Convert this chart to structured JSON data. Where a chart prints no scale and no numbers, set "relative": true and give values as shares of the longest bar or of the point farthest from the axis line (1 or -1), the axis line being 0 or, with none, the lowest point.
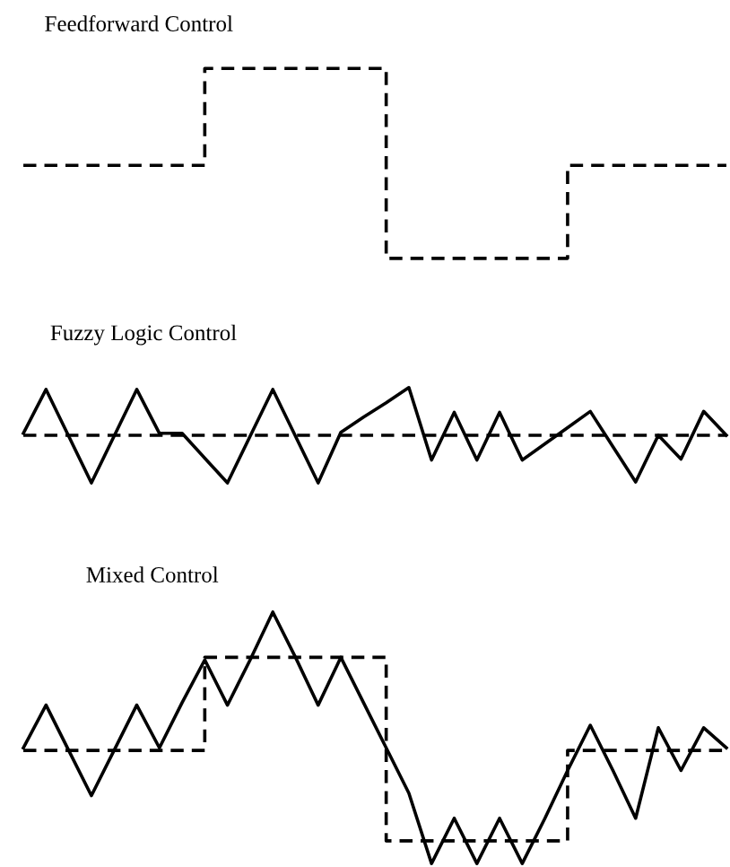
{
  "chart_data": [
    {
      "type": "step",
      "title": "Feedforward Control",
      "relative": true,
      "tick_labels": false,
      "categories": [
        null,
        null,
        null,
        null,
        null,
        null,
        null,
        null,
        null,
        null,
        null,
        null,
        null,
        null,
        null,
        null,
        null,
        null,
        null,
        null,
        null,
        null,
        null,
        null,
        null,
        null,
        null,
        null,
        null,
        null,
        null,
        null
      ],
      "series": [
        {
          "color": "#000000",
          "line_style": "dashed",
          "values": [
            0.49,
            0.49,
            0.49,
            0.49,
            0.49,
            0.49,
            0.49,
            0.49,
            1,
            1,
            1,
            1,
            1,
            1,
            1,
            1,
            0,
            0,
            0,
            0,
            0,
            0,
            0,
            0,
            0.49,
            0.49,
            0.49,
            0.49,
            0.49,
            0.49,
            0.49,
            0.49
          ]
        }
      ]
    },
    {
      "type": "line",
      "title": "Fuzzy Logic Control",
      "relative": true,
      "tick_labels": false,
      "categories": [
        null,
        null,
        null,
        null,
        null,
        null,
        null,
        null,
        null,
        null,
        null,
        null,
        null,
        null,
        null,
        null,
        null,
        null,
        null,
        null,
        null,
        null,
        null,
        null,
        null,
        null,
        null,
        null,
        null,
        null,
        null,
        null
      ],
      "series": [
        {
          "color": "#000000",
          "line_style": "solid",
          "values": [
            0.52,
            0.98,
            0.49,
            0,
            0.49,
            0.98,
            0.52,
            0.52,
            0.26,
            0,
            0.49,
            0.98,
            0.49,
            0,
            0.53,
            0.69,
            0.84,
            1,
            0.24,
            0.74,
            0.24,
            0.74,
            0.24,
            0.41,
            0.58,
            0.75,
            0.38,
            0.01,
            0.5,
            0.25,
            0.75,
            0.5
          ]
        },
        {
          "type": "step",
          "color": "#000000",
          "line_style": "dashed",
          "values": [
            0.5,
            0.5,
            0.5,
            0.5,
            0.5,
            0.5,
            0.5,
            0.5,
            0.5,
            0.5,
            0.5,
            0.5,
            0.5,
            0.5,
            0.5,
            0.5,
            0.5,
            0.5,
            0.5,
            0.5,
            0.5,
            0.5,
            0.5,
            0.5,
            0.5,
            0.5,
            0.5,
            0.5,
            0.5,
            0.5,
            0.5,
            0.5
          ]
        }
      ]
    },
    {
      "type": "line",
      "title": "Mixed Control",
      "relative": true,
      "tick_labels": false,
      "categories": [
        null,
        null,
        null,
        null,
        null,
        null,
        null,
        null,
        null,
        null,
        null,
        null,
        null,
        null,
        null,
        null,
        null,
        null,
        null,
        null,
        null,
        null,
        null,
        null,
        null,
        null,
        null,
        null,
        null,
        null,
        null,
        null
      ],
      "series": [
        {
          "color": "#000000",
          "line_style": "solid",
          "values": [
            0.46,
            0.63,
            0.45,
            0.27,
            0.45,
            0.63,
            0.46,
            0.64,
            0.81,
            0.63,
            0.81,
            1,
            0.82,
            0.63,
            0.82,
            0.64,
            0.46,
            0.28,
            0,
            0.18,
            0,
            0.18,
            0,
            0.18,
            0.37,
            0.55,
            0.37,
            0.18,
            0.54,
            0.37,
            0.54,
            0.46
          ]
        },
        {
          "type": "step",
          "color": "#000000",
          "line_style": "dashed",
          "values": [
            0.45,
            0.45,
            0.45,
            0.45,
            0.45,
            0.45,
            0.45,
            0.45,
            0.82,
            0.82,
            0.82,
            0.82,
            0.82,
            0.82,
            0.82,
            0.82,
            0.09,
            0.09,
            0.09,
            0.09,
            0.09,
            0.09,
            0.09,
            0.09,
            0.45,
            0.45,
            0.45,
            0.45,
            0.45,
            0.45,
            0.45,
            0.45
          ]
        }
      ]
    }
  ]
}
